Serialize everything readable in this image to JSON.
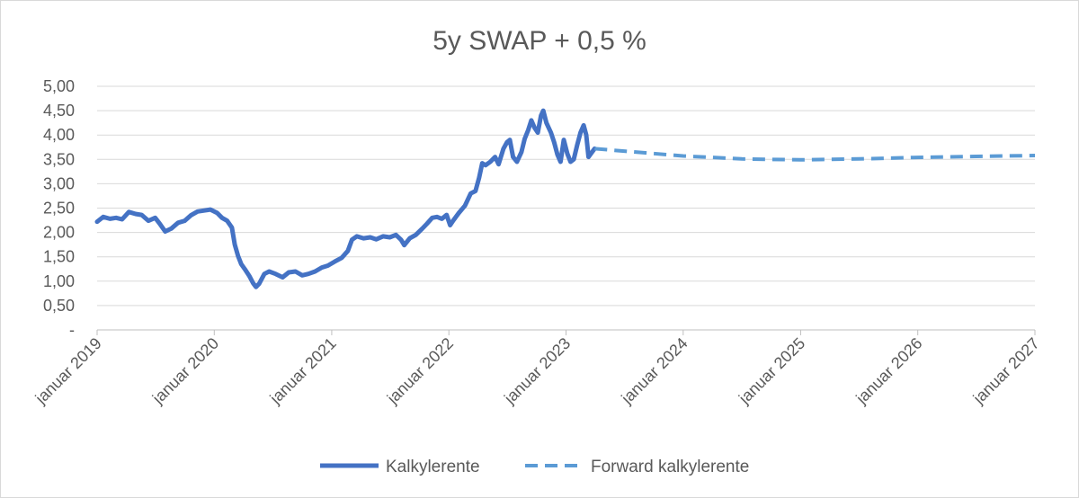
{
  "chart_data": {
    "type": "line",
    "title": "5y SWAP + 0,5 %",
    "xlabel": "",
    "ylabel": "",
    "x_range": [
      "2019-01-01",
      "2027-01-01"
    ],
    "ylim": [
      0,
      5
    ],
    "y_ticks": [
      {
        "value": 0,
        "label": "-"
      },
      {
        "value": 0.5,
        "label": "0,50"
      },
      {
        "value": 1.0,
        "label": "1,00"
      },
      {
        "value": 1.5,
        "label": "1,50"
      },
      {
        "value": 2.0,
        "label": "2,00"
      },
      {
        "value": 2.5,
        "label": "2,50"
      },
      {
        "value": 3.0,
        "label": "3,00"
      },
      {
        "value": 3.5,
        "label": "3,50"
      },
      {
        "value": 4.0,
        "label": "4,00"
      },
      {
        "value": 4.5,
        "label": "4,50"
      },
      {
        "value": 5.0,
        "label": "5,00"
      }
    ],
    "x_ticks": [
      {
        "date": "2019-01-01",
        "label": "januar 2019"
      },
      {
        "date": "2020-01-01",
        "label": "januar 2020"
      },
      {
        "date": "2021-01-01",
        "label": "januar 2021"
      },
      {
        "date": "2022-01-01",
        "label": "januar 2022"
      },
      {
        "date": "2023-01-01",
        "label": "januar 2023"
      },
      {
        "date": "2024-01-01",
        "label": "januar 2024"
      },
      {
        "date": "2025-01-01",
        "label": "januar 2025"
      },
      {
        "date": "2026-01-01",
        "label": "januar 2026"
      },
      {
        "date": "2027-01-01",
        "label": "januar 2027"
      }
    ],
    "grid": "horizontal",
    "legend_position": "bottom",
    "series": [
      {
        "name": "Kalkylerente",
        "style": "solid",
        "color": "#4472C4",
        "points": [
          [
            "2019-01-01",
            2.22
          ],
          [
            "2019-01-20",
            2.32
          ],
          [
            "2019-02-10",
            2.28
          ],
          [
            "2019-03-01",
            2.3
          ],
          [
            "2019-03-20",
            2.27
          ],
          [
            "2019-04-10",
            2.42
          ],
          [
            "2019-05-01",
            2.38
          ],
          [
            "2019-05-20",
            2.36
          ],
          [
            "2019-06-10",
            2.24
          ],
          [
            "2019-07-01",
            2.3
          ],
          [
            "2019-07-15",
            2.18
          ],
          [
            "2019-08-01",
            2.02
          ],
          [
            "2019-08-20",
            2.08
          ],
          [
            "2019-09-10",
            2.2
          ],
          [
            "2019-10-01",
            2.24
          ],
          [
            "2019-10-20",
            2.35
          ],
          [
            "2019-11-10",
            2.43
          ],
          [
            "2019-12-01",
            2.45
          ],
          [
            "2019-12-20",
            2.47
          ],
          [
            "2020-01-10",
            2.4
          ],
          [
            "2020-01-25",
            2.3
          ],
          [
            "2020-02-10",
            2.24
          ],
          [
            "2020-02-25",
            2.1
          ],
          [
            "2020-03-05",
            1.75
          ],
          [
            "2020-03-15",
            1.52
          ],
          [
            "2020-03-25",
            1.35
          ],
          [
            "2020-04-05",
            1.25
          ],
          [
            "2020-04-20",
            1.1
          ],
          [
            "2020-05-01",
            0.96
          ],
          [
            "2020-05-10",
            0.88
          ],
          [
            "2020-05-20",
            0.95
          ],
          [
            "2020-06-05",
            1.15
          ],
          [
            "2020-06-20",
            1.2
          ],
          [
            "2020-07-10",
            1.15
          ],
          [
            "2020-08-01",
            1.08
          ],
          [
            "2020-08-20",
            1.18
          ],
          [
            "2020-09-10",
            1.2
          ],
          [
            "2020-10-01",
            1.12
          ],
          [
            "2020-10-20",
            1.15
          ],
          [
            "2020-11-10",
            1.2
          ],
          [
            "2020-12-01",
            1.28
          ],
          [
            "2020-12-20",
            1.32
          ],
          [
            "2021-01-10",
            1.4
          ],
          [
            "2021-02-01",
            1.48
          ],
          [
            "2021-02-20",
            1.62
          ],
          [
            "2021-03-05",
            1.85
          ],
          [
            "2021-03-20",
            1.92
          ],
          [
            "2021-04-10",
            1.88
          ],
          [
            "2021-05-01",
            1.9
          ],
          [
            "2021-05-20",
            1.86
          ],
          [
            "2021-06-10",
            1.92
          ],
          [
            "2021-07-01",
            1.9
          ],
          [
            "2021-07-20",
            1.95
          ],
          [
            "2021-08-05",
            1.85
          ],
          [
            "2021-08-15",
            1.74
          ],
          [
            "2021-09-01",
            1.88
          ],
          [
            "2021-09-20",
            1.95
          ],
          [
            "2021-10-10",
            2.08
          ],
          [
            "2021-10-25",
            2.18
          ],
          [
            "2021-11-10",
            2.3
          ],
          [
            "2021-11-25",
            2.32
          ],
          [
            "2021-12-10",
            2.28
          ],
          [
            "2021-12-25",
            2.36
          ],
          [
            "2022-01-05",
            2.15
          ],
          [
            "2022-01-15",
            2.25
          ],
          [
            "2022-02-01",
            2.4
          ],
          [
            "2022-02-20",
            2.55
          ],
          [
            "2022-03-10",
            2.8
          ],
          [
            "2022-03-25",
            2.85
          ],
          [
            "2022-04-05",
            3.12
          ],
          [
            "2022-04-15",
            3.42
          ],
          [
            "2022-04-25",
            3.38
          ],
          [
            "2022-05-10",
            3.45
          ],
          [
            "2022-05-25",
            3.55
          ],
          [
            "2022-06-05",
            3.4
          ],
          [
            "2022-06-20",
            3.72
          ],
          [
            "2022-07-01",
            3.85
          ],
          [
            "2022-07-10",
            3.9
          ],
          [
            "2022-07-20",
            3.55
          ],
          [
            "2022-08-01",
            3.45
          ],
          [
            "2022-08-15",
            3.65
          ],
          [
            "2022-08-25",
            3.92
          ],
          [
            "2022-09-05",
            4.1
          ],
          [
            "2022-09-15",
            4.3
          ],
          [
            "2022-09-25",
            4.15
          ],
          [
            "2022-10-05",
            4.05
          ],
          [
            "2022-10-15",
            4.4
          ],
          [
            "2022-10-22",
            4.5
          ],
          [
            "2022-11-01",
            4.25
          ],
          [
            "2022-11-15",
            4.05
          ],
          [
            "2022-11-25",
            3.85
          ],
          [
            "2022-12-05",
            3.6
          ],
          [
            "2022-12-15",
            3.45
          ],
          [
            "2022-12-25",
            3.9
          ],
          [
            "2023-01-05",
            3.62
          ],
          [
            "2023-01-15",
            3.45
          ],
          [
            "2023-01-25",
            3.5
          ],
          [
            "2023-02-05",
            3.8
          ],
          [
            "2023-02-15",
            4.05
          ],
          [
            "2023-02-25",
            4.2
          ],
          [
            "2023-03-05",
            4.0
          ],
          [
            "2023-03-12",
            3.55
          ],
          [
            "2023-03-20",
            3.62
          ],
          [
            "2023-03-31",
            3.72
          ]
        ]
      },
      {
        "name": "Forward kalkylerente",
        "style": "dashed",
        "color": "#5B9BD5",
        "points": [
          [
            "2023-03-31",
            3.72
          ],
          [
            "2023-07-01",
            3.67
          ],
          [
            "2024-01-01",
            3.57
          ],
          [
            "2024-07-01",
            3.51
          ],
          [
            "2025-01-01",
            3.49
          ],
          [
            "2025-07-01",
            3.51
          ],
          [
            "2026-01-01",
            3.54
          ],
          [
            "2026-07-01",
            3.56
          ],
          [
            "2027-01-01",
            3.58
          ]
        ]
      }
    ]
  }
}
